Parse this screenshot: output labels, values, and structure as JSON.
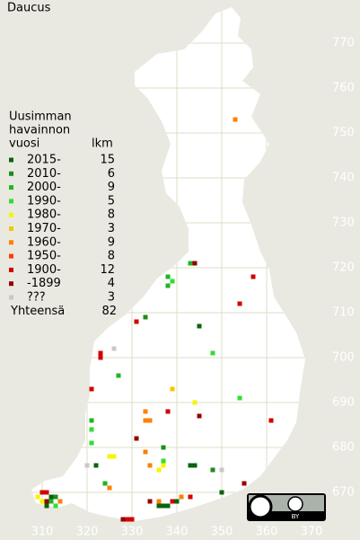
{
  "title": "Daucus",
  "legend": {
    "heading": [
      "Uusimman",
      "havainnon",
      "vuosi"
    ],
    "count_heading": "lkm",
    "rows": [
      {
        "label": "2015-",
        "count": 15,
        "color": "#0a640a"
      },
      {
        "label": "2010-",
        "count": 6,
        "color": "#1e8c1e"
      },
      {
        "label": "2000-",
        "count": 9,
        "color": "#22b422"
      },
      {
        "label": "1990-",
        "count": 5,
        "color": "#33dd33"
      },
      {
        "label": "1980-",
        "count": 8,
        "color": "#f5f500"
      },
      {
        "label": "1970-",
        "count": 3,
        "color": "#f0c800"
      },
      {
        "label": "1960-",
        "count": 9,
        "color": "#ff8000"
      },
      {
        "label": "1950-",
        "count": 8,
        "color": "#ff3c00"
      },
      {
        "label": "1900-",
        "count": 12,
        "color": "#d20000"
      },
      {
        "label": "-1899",
        "count": 4,
        "color": "#960000"
      },
      {
        "label": "???",
        "count": 3,
        "color": "#c8c8c8"
      }
    ],
    "total_label": "Yhteensä",
    "total": 82
  },
  "xticks": [
    310,
    320,
    330,
    340,
    350,
    360,
    370
  ],
  "yticks": [
    670,
    680,
    690,
    700,
    710,
    720,
    730,
    740,
    750,
    760,
    770
  ],
  "squares": [
    {
      "x": 353,
      "y": 753,
      "period": 6
    },
    {
      "x": 343,
      "y": 721,
      "period": 2
    },
    {
      "x": 344,
      "y": 721,
      "period": 9
    },
    {
      "x": 357,
      "y": 718,
      "period": 8
    },
    {
      "x": 338,
      "y": 718,
      "period": 2
    },
    {
      "x": 339,
      "y": 717,
      "period": 3
    },
    {
      "x": 338,
      "y": 716,
      "period": 2
    },
    {
      "x": 354,
      "y": 712,
      "period": 8
    },
    {
      "x": 331,
      "y": 708,
      "period": 8
    },
    {
      "x": 333,
      "y": 709,
      "period": 1
    },
    {
      "x": 345,
      "y": 707,
      "period": 0
    },
    {
      "x": 326,
      "y": 702,
      "period": 10
    },
    {
      "x": 323,
      "y": 701,
      "period": 8
    },
    {
      "x": 323,
      "y": 700,
      "period": 8
    },
    {
      "x": 348,
      "y": 701,
      "period": 3
    },
    {
      "x": 327,
      "y": 696,
      "period": 2
    },
    {
      "x": 321,
      "y": 693,
      "period": 8
    },
    {
      "x": 339,
      "y": 693,
      "period": 5
    },
    {
      "x": 344,
      "y": 690,
      "period": 4
    },
    {
      "x": 354,
      "y": 691,
      "period": 3
    },
    {
      "x": 333,
      "y": 688,
      "period": 6
    },
    {
      "x": 333,
      "y": 686,
      "period": 6
    },
    {
      "x": 334,
      "y": 686,
      "period": 6
    },
    {
      "x": 338,
      "y": 688,
      "period": 8
    },
    {
      "x": 345,
      "y": 687,
      "period": 9
    },
    {
      "x": 361,
      "y": 686,
      "period": 8
    },
    {
      "x": 321,
      "y": 686,
      "period": 2
    },
    {
      "x": 321,
      "y": 684,
      "period": 3
    },
    {
      "x": 321,
      "y": 681,
      "period": 3
    },
    {
      "x": 331,
      "y": 682,
      "period": 9
    },
    {
      "x": 337,
      "y": 680,
      "period": 1
    },
    {
      "x": 333,
      "y": 679,
      "period": 6
    },
    {
      "x": 325,
      "y": 678,
      "period": 4
    },
    {
      "x": 326,
      "y": 678,
      "period": 4
    },
    {
      "x": 320,
      "y": 676,
      "period": 10
    },
    {
      "x": 322,
      "y": 676,
      "period": 0
    },
    {
      "x": 337,
      "y": 677,
      "period": 3
    },
    {
      "x": 336,
      "y": 675,
      "period": 4
    },
    {
      "x": 337,
      "y": 676,
      "period": 4
    },
    {
      "x": 334,
      "y": 676,
      "period": 6
    },
    {
      "x": 343,
      "y": 676,
      "period": 0
    },
    {
      "x": 344,
      "y": 676,
      "period": 0
    },
    {
      "x": 348,
      "y": 675,
      "period": 1
    },
    {
      "x": 350,
      "y": 675,
      "period": 10
    },
    {
      "x": 355,
      "y": 672,
      "period": 9
    },
    {
      "x": 324,
      "y": 672,
      "period": 2
    },
    {
      "x": 325,
      "y": 671,
      "period": 6
    },
    {
      "x": 350,
      "y": 670,
      "period": 0
    },
    {
      "x": 310,
      "y": 670,
      "period": 8
    },
    {
      "x": 311,
      "y": 670,
      "period": 8
    },
    {
      "x": 312,
      "y": 669,
      "period": 0
    },
    {
      "x": 313,
      "y": 669,
      "period": 1
    },
    {
      "x": 309,
      "y": 669,
      "period": 4
    },
    {
      "x": 310,
      "y": 668,
      "period": 4
    },
    {
      "x": 311,
      "y": 668,
      "period": 9
    },
    {
      "x": 312,
      "y": 668,
      "period": 2
    },
    {
      "x": 313,
      "y": 667,
      "period": 3
    },
    {
      "x": 311,
      "y": 667,
      "period": 0
    },
    {
      "x": 314,
      "y": 668,
      "period": 6
    },
    {
      "x": 334,
      "y": 668,
      "period": 9
    },
    {
      "x": 336,
      "y": 668,
      "period": 6
    },
    {
      "x": 336,
      "y": 667,
      "period": 0
    },
    {
      "x": 337,
      "y": 667,
      "period": 0
    },
    {
      "x": 338,
      "y": 667,
      "period": 0
    },
    {
      "x": 339,
      "y": 668,
      "period": 8
    },
    {
      "x": 340,
      "y": 668,
      "period": 0
    },
    {
      "x": 341,
      "y": 669,
      "period": 6
    },
    {
      "x": 343,
      "y": 669,
      "period": 8
    },
    {
      "x": 329,
      "y": 664,
      "period": 8
    },
    {
      "x": 330,
      "y": 664,
      "period": 8
    },
    {
      "x": 328,
      "y": 664,
      "period": 9
    }
  ],
  "license_badge": "BY"
}
